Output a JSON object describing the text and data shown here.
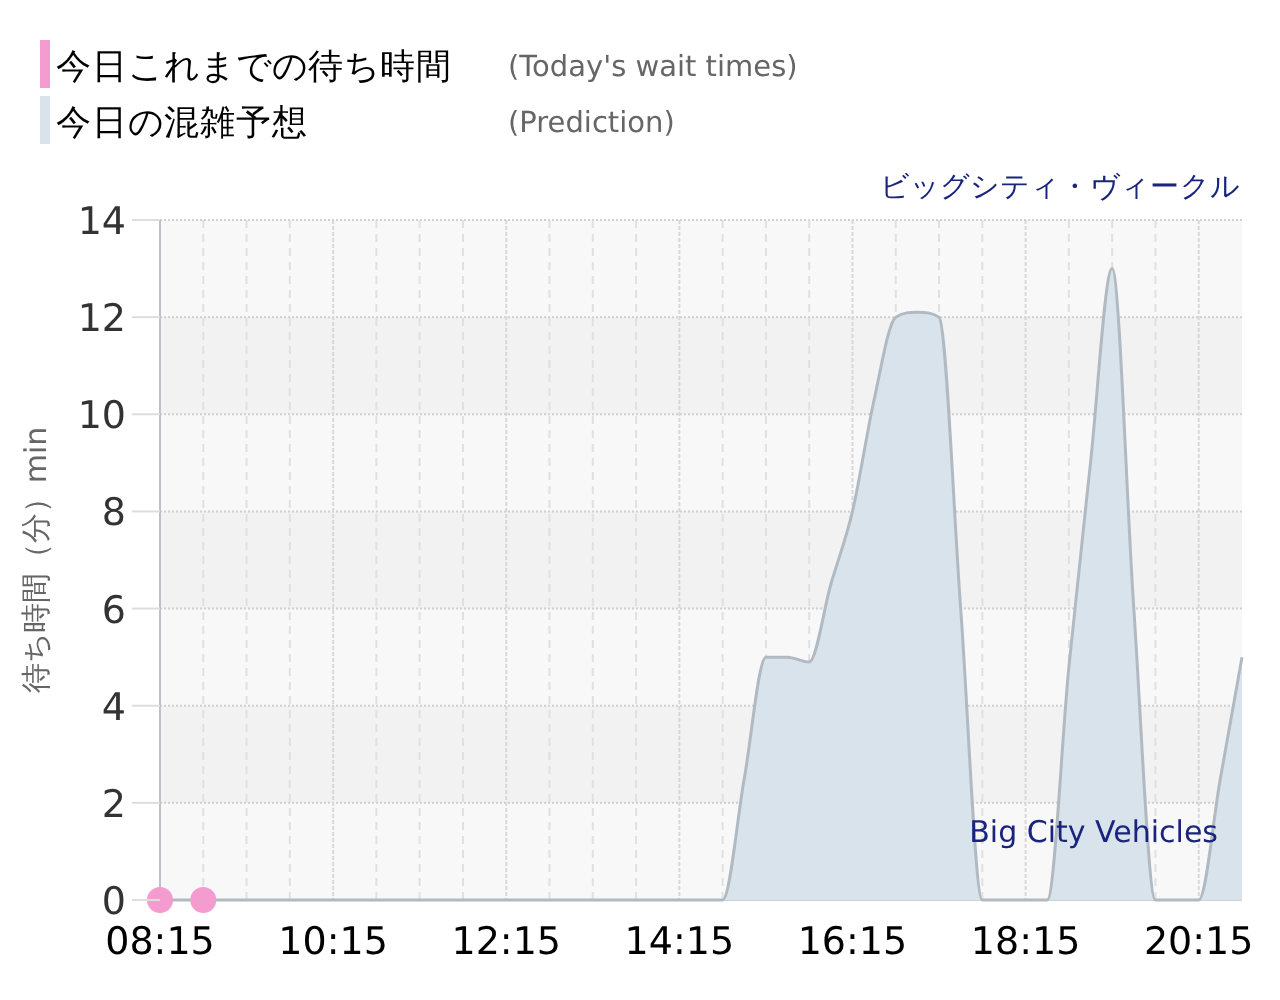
{
  "chart_data": {
    "type": "area",
    "title": "ビッグシティ・ヴィークル",
    "ylabel": "待ち時間（分）min",
    "annotations": [
      "(Today's wait times)",
      "(Prediction)",
      "Big City Vehicles"
    ],
    "xlim": [
      8.25,
      20.75
    ],
    "ylim": [
      0,
      14
    ],
    "xticks": [
      {
        "value": 8.25,
        "label": "08:15"
      },
      {
        "value": 8.75,
        "label": null
      },
      {
        "value": 9.25,
        "label": null
      },
      {
        "value": 9.75,
        "label": null
      },
      {
        "value": 10.25,
        "label": "10:15"
      },
      {
        "value": 10.75,
        "label": null
      },
      {
        "value": 11.25,
        "label": null
      },
      {
        "value": 11.75,
        "label": null
      },
      {
        "value": 12.25,
        "label": "12:15"
      },
      {
        "value": 12.75,
        "label": null
      },
      {
        "value": 13.25,
        "label": null
      },
      {
        "value": 13.75,
        "label": null
      },
      {
        "value": 14.25,
        "label": "14:15"
      },
      {
        "value": 14.75,
        "label": null
      },
      {
        "value": 15.25,
        "label": null
      },
      {
        "value": 15.75,
        "label": null
      },
      {
        "value": 16.25,
        "label": "16:15"
      },
      {
        "value": 16.75,
        "label": null
      },
      {
        "value": 17.25,
        "label": null
      },
      {
        "value": 17.75,
        "label": null
      },
      {
        "value": 18.25,
        "label": "18:15"
      },
      {
        "value": 18.75,
        "label": null
      },
      {
        "value": 19.25,
        "label": null
      },
      {
        "value": 19.75,
        "label": null
      },
      {
        "value": 20.25,
        "label": "20:15"
      }
    ],
    "yticks": [
      0,
      2,
      4,
      6,
      8,
      10,
      12,
      14
    ],
    "grid": true,
    "legend": "top left",
    "series": [
      {
        "name": "今日これまでの待ち時間",
        "type": "scatter",
        "marker": "circle",
        "color": "#f49ccf",
        "x": [
          8.25,
          8.75
        ],
        "values": [
          0,
          0
        ]
      },
      {
        "name": "今日の混雑予想",
        "color": "#d9e3eb",
        "x": [
          8.25,
          9.25,
          10.25,
          11.25,
          12.25,
          13.25,
          14.25,
          14.75,
          15.0,
          15.25,
          15.5,
          15.75,
          16.0,
          16.25,
          16.5,
          16.75,
          17.0,
          17.25,
          17.5,
          17.75,
          18.0,
          18.25,
          18.5,
          18.75,
          19.0,
          19.25,
          19.5,
          19.75,
          20.0,
          20.25,
          20.5,
          20.75
        ],
        "values": [
          0,
          0,
          0,
          0,
          0,
          0,
          0,
          0,
          2.5,
          5,
          5,
          4.9,
          6.5,
          8,
          10.3,
          12,
          12.1,
          12,
          6,
          0,
          0,
          0,
          0,
          4.8,
          9,
          13,
          6,
          0,
          0,
          0,
          2.5,
          5
        ]
      }
    ]
  }
}
